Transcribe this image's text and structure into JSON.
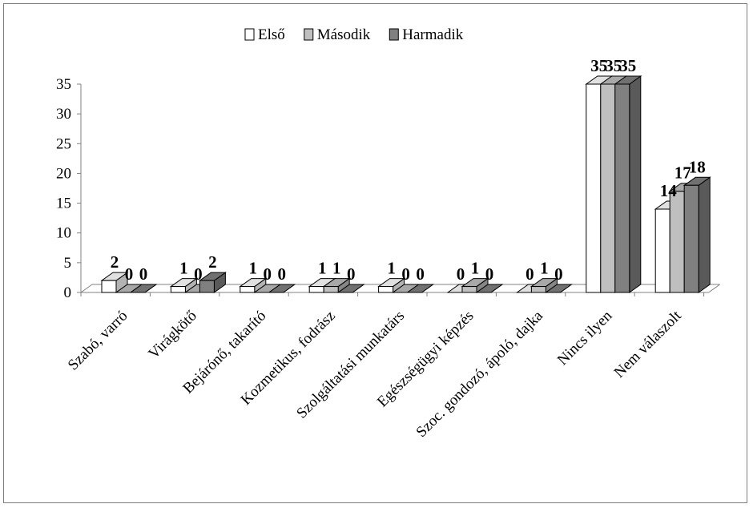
{
  "chart_data": {
    "type": "bar",
    "style": "3d-clustered-column",
    "categories": [
      "Szabó, varró",
      "Virágkötő",
      "Bejárónő, takarító",
      "Kozmetikus, fodrász",
      "Szolgáltatási munkatárs",
      "Egészségügyi képzés",
      "Szoc. gondozó, ápoló, dajka",
      "Nincs ilyen",
      "Nem válaszolt"
    ],
    "series": [
      {
        "name": "Első",
        "color": "#ffffff",
        "values": [
          2,
          1,
          1,
          1,
          1,
          0,
          0,
          35,
          14
        ]
      },
      {
        "name": "Második",
        "color": "#bfbfbf",
        "values": [
          0,
          0,
          0,
          1,
          0,
          1,
          1,
          35,
          17
        ]
      },
      {
        "name": "Harmadik",
        "color": "#808080",
        "values": [
          0,
          2,
          0,
          0,
          0,
          0,
          0,
          35,
          18
        ]
      }
    ],
    "title": "",
    "xlabel": "",
    "ylabel": "",
    "ylim": [
      0,
      35
    ],
    "yticks": [
      0,
      5,
      10,
      15,
      20,
      25,
      30,
      35
    ],
    "legend_position": "top",
    "grid": false,
    "data_labels": true
  }
}
